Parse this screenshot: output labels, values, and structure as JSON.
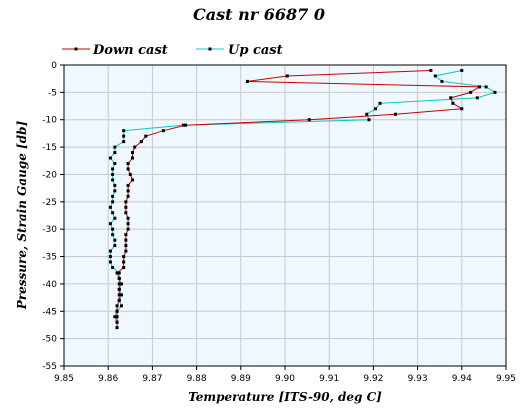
{
  "chart_data": {
    "type": "line",
    "title": "Cast nr 6687 0",
    "xlabel": "Temperature [ITS-90, deg C]",
    "ylabel": "Pressure, Strain Gauge [db]",
    "xlim": [
      9.85,
      9.95
    ],
    "ylim": [
      -55,
      0
    ],
    "x_ticks": [
      "9.85",
      "9.86",
      "9.87",
      "9.88",
      "9.89",
      "9.90",
      "9.91",
      "9.92",
      "9.93",
      "9.94",
      "9.95"
    ],
    "y_ticks": [
      "0",
      "-5",
      "-10",
      "-15",
      "-20",
      "-25",
      "-30",
      "-35",
      "-40",
      "-45",
      "-50",
      "-55"
    ],
    "grid": true,
    "legend_position": "top-left",
    "plot_background": "#f0f8ff",
    "series": [
      {
        "name": "Down cast",
        "color": "#cc0000",
        "points": [
          [
            9.933,
            -1.0
          ],
          [
            9.9005,
            -2.0
          ],
          [
            9.8915,
            -3.0
          ],
          [
            9.944,
            -4.0
          ],
          [
            9.942,
            -5.0
          ],
          [
            9.9375,
            -6.0
          ],
          [
            9.938,
            -7.0
          ],
          [
            9.94,
            -8.0
          ],
          [
            9.925,
            -9.0
          ],
          [
            9.9055,
            -10.0
          ],
          [
            9.8775,
            -11.0
          ],
          [
            9.8725,
            -12.0
          ],
          [
            9.8685,
            -13.0
          ],
          [
            9.8675,
            -14.0
          ],
          [
            9.866,
            -15.0
          ],
          [
            9.8655,
            -16.0
          ],
          [
            9.8655,
            -17.0
          ],
          [
            9.8645,
            -18.0
          ],
          [
            9.8645,
            -19.0
          ],
          [
            9.865,
            -20.0
          ],
          [
            9.8655,
            -21.0
          ],
          [
            9.8645,
            -22.0
          ],
          [
            9.8645,
            -23.0
          ],
          [
            9.8645,
            -24.0
          ],
          [
            9.864,
            -25.0
          ],
          [
            9.864,
            -26.0
          ],
          [
            9.864,
            -27.0
          ],
          [
            9.8645,
            -28.0
          ],
          [
            9.8645,
            -29.0
          ],
          [
            9.8645,
            -30.0
          ],
          [
            9.864,
            -31.0
          ],
          [
            9.864,
            -32.0
          ],
          [
            9.864,
            -33.0
          ],
          [
            9.864,
            -34.0
          ],
          [
            9.8635,
            -35.0
          ],
          [
            9.8635,
            -36.0
          ],
          [
            9.8635,
            -37.0
          ],
          [
            9.862,
            -38.0
          ],
          [
            9.8625,
            -39.0
          ],
          [
            9.8625,
            -40.0
          ],
          [
            9.8625,
            -41.0
          ],
          [
            9.8625,
            -42.0
          ],
          [
            9.8625,
            -43.0
          ],
          [
            9.862,
            -44.0
          ],
          [
            9.862,
            -45.0
          ],
          [
            9.862,
            -46.0
          ],
          [
            9.862,
            -47.0
          ],
          [
            9.862,
            -48.0
          ]
        ]
      },
      {
        "name": "Up cast",
        "color": "#00cccc",
        "points": [
          [
            9.862,
            -47.0
          ],
          [
            9.8615,
            -46.0
          ],
          [
            9.862,
            -45.0
          ],
          [
            9.863,
            -44.0
          ],
          [
            9.8625,
            -43.0
          ],
          [
            9.863,
            -42.0
          ],
          [
            9.8625,
            -41.0
          ],
          [
            9.863,
            -40.0
          ],
          [
            9.8625,
            -39.0
          ],
          [
            9.8625,
            -38.0
          ],
          [
            9.861,
            -37.0
          ],
          [
            9.8605,
            -36.0
          ],
          [
            9.8605,
            -35.0
          ],
          [
            9.8605,
            -34.0
          ],
          [
            9.8615,
            -33.0
          ],
          [
            9.8615,
            -32.0
          ],
          [
            9.861,
            -31.0
          ],
          [
            9.861,
            -30.0
          ],
          [
            9.8605,
            -29.0
          ],
          [
            9.8615,
            -28.0
          ],
          [
            9.861,
            -27.0
          ],
          [
            9.8605,
            -26.0
          ],
          [
            9.861,
            -25.0
          ],
          [
            9.861,
            -24.0
          ],
          [
            9.8615,
            -23.0
          ],
          [
            9.8615,
            -22.0
          ],
          [
            9.861,
            -21.0
          ],
          [
            9.861,
            -20.0
          ],
          [
            9.861,
            -19.0
          ],
          [
            9.8615,
            -18.0
          ],
          [
            9.8605,
            -17.0
          ],
          [
            9.8615,
            -16.0
          ],
          [
            9.8615,
            -15.0
          ],
          [
            9.8635,
            -14.0
          ],
          [
            9.8635,
            -13.0
          ],
          [
            9.8635,
            -12.0
          ],
          [
            9.877,
            -11.0
          ],
          [
            9.919,
            -10.0
          ],
          [
            9.9185,
            -9.0
          ],
          [
            9.9205,
            -8.0
          ],
          [
            9.9215,
            -7.0
          ],
          [
            9.9435,
            -6.0
          ],
          [
            9.9475,
            -5.0
          ],
          [
            9.9455,
            -4.0
          ],
          [
            9.9355,
            -3.0
          ],
          [
            9.934,
            -2.0
          ],
          [
            9.94,
            -1.0
          ]
        ]
      }
    ]
  }
}
